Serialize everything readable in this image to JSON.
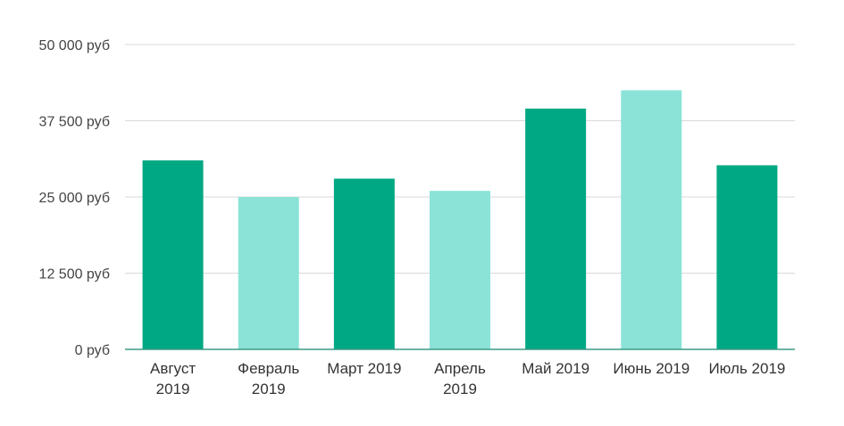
{
  "chart_data": {
    "type": "bar",
    "title": "",
    "xlabel": "",
    "ylabel": "",
    "categories": [
      [
        "Август",
        "2019"
      ],
      [
        "Февраль",
        "2019"
      ],
      [
        "Март 2019"
      ],
      [
        "Апрель",
        "2019"
      ],
      [
        "Май 2019"
      ],
      [
        "Июнь 2019"
      ],
      [
        "Июль 2019"
      ]
    ],
    "values": [
      31000,
      25000,
      28000,
      26000,
      39500,
      42500,
      30200
    ],
    "ylim": [
      0,
      50000
    ],
    "yticks": [
      0,
      12500,
      25000,
      37500,
      50000
    ],
    "ytick_labels": [
      "0 руб",
      "12 500 руб",
      "25 000 руб",
      "37 500 руб",
      "50 000 руб"
    ],
    "bar_colors": [
      "#00a884",
      "#8be3d8",
      "#00a884",
      "#8be3d8",
      "#00a884",
      "#8be3d8",
      "#00a884"
    ],
    "grid": true,
    "legend": "none"
  }
}
